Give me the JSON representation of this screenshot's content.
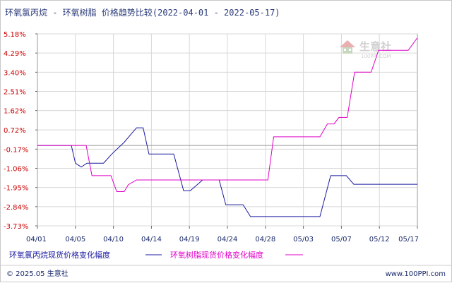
{
  "title": "环氧氯丙烷 - 环氧树脂 价格趋势比较(2022-04-01 - 2022-05-17)",
  "colors": {
    "series_a": "#1a1aa0",
    "series_b": "#e000c8",
    "ytick": "#cc0000",
    "grid": "#d8d8d8",
    "zero_line": "#999999"
  },
  "watermark": {
    "logo_text": "生意社",
    "url_text": "100PPI.COM"
  },
  "footer": {
    "left": "© 2025.05 生意社",
    "right": "www.100PPI.com"
  },
  "chart_data": {
    "type": "line",
    "title": "环氧氯丙烷 - 环氧树脂 价格趋势比较(2022-04-01 - 2022-05-17)",
    "x_unit": "day index (0 = 04/01)",
    "xlim": [
      0,
      46
    ],
    "ylim": [
      -3.73,
      5.18
    ],
    "y_ticks": [
      "5.18%",
      "4.29%",
      "3.40%",
      "2.51%",
      "1.62%",
      "0.72%",
      "-0.17%",
      "-1.06%",
      "-1.95%",
      "-2.84%",
      "-3.73%"
    ],
    "y_tick_values": [
      5.18,
      4.29,
      3.4,
      2.51,
      1.62,
      0.72,
      -0.17,
      -1.06,
      -1.95,
      -2.84,
      -3.73
    ],
    "x_ticks": [
      "04/01",
      "04/05",
      "04/10",
      "04/14",
      "04/19",
      "04/24",
      "04/28",
      "05/03",
      "05/07",
      "05/12",
      "05/17"
    ],
    "x_tick_positions": [
      0,
      4.6,
      9.2,
      13.8,
      18.4,
      23,
      27.6,
      32.2,
      36.8,
      41.4,
      46
    ],
    "zero_line": 0,
    "grid": true,
    "series": [
      {
        "name": "环氧氯丙烷现货价格变化幅度",
        "color": "#1a1aa0",
        "points": [
          [
            0,
            0
          ],
          [
            4.1,
            0
          ],
          [
            4.6,
            -0.82
          ],
          [
            5.3,
            -1.0
          ],
          [
            6.0,
            -0.82
          ],
          [
            8.0,
            -0.82
          ],
          [
            9.0,
            -0.4
          ],
          [
            10.5,
            0.15
          ],
          [
            12.0,
            0.82
          ],
          [
            12.8,
            0.82
          ],
          [
            13.5,
            -0.4
          ],
          [
            16.5,
            -0.4
          ],
          [
            17.7,
            -2.1
          ],
          [
            18.5,
            -2.1
          ],
          [
            20.0,
            -1.6
          ],
          [
            22.0,
            -1.6
          ],
          [
            22.8,
            -2.75
          ],
          [
            24.9,
            -2.75
          ],
          [
            25.8,
            -3.3
          ],
          [
            34.2,
            -3.3
          ],
          [
            35.5,
            -1.4
          ],
          [
            37.4,
            -1.4
          ],
          [
            38.3,
            -1.8
          ],
          [
            46,
            -1.8
          ]
        ]
      },
      {
        "name": "环氧树脂现货价格变化幅度",
        "color": "#e000c8",
        "points": [
          [
            0,
            0
          ],
          [
            5.9,
            0
          ],
          [
            6.6,
            -1.4
          ],
          [
            8.9,
            -1.4
          ],
          [
            9.6,
            -2.14
          ],
          [
            10.5,
            -2.14
          ],
          [
            11.0,
            -1.82
          ],
          [
            12.0,
            -1.6
          ],
          [
            27.9,
            -1.6
          ],
          [
            28.6,
            0.4
          ],
          [
            34.2,
            0.4
          ],
          [
            35.1,
            1.0
          ],
          [
            35.9,
            1.0
          ],
          [
            36.5,
            1.3
          ],
          [
            37.5,
            1.3
          ],
          [
            38.4,
            3.4
          ],
          [
            40.4,
            3.4
          ],
          [
            41.3,
            4.42
          ],
          [
            44.9,
            4.42
          ],
          [
            46,
            5.0
          ]
        ]
      }
    ]
  }
}
